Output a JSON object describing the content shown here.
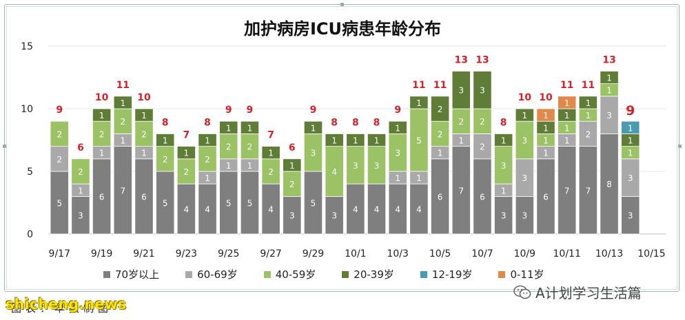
{
  "chart_data": {
    "type": "bar",
    "stacked": true,
    "title": "加护病房ICU病患年龄分布",
    "xlabel": "",
    "ylabel": "",
    "ylim": [
      0,
      15
    ],
    "yticks": [
      0,
      5,
      10,
      15
    ],
    "grid": true,
    "legend_position": "bottom",
    "categories": [
      "9/17",
      "9/18",
      "9/19",
      "9/20",
      "9/21",
      "9/22",
      "9/23",
      "9/24",
      "9/25",
      "9/26",
      "9/27",
      "9/28",
      "9/29",
      "9/30",
      "10/1",
      "10/2",
      "10/3",
      "10/4",
      "10/5",
      "10/6",
      "10/7",
      "10/8",
      "10/9",
      "10/10",
      "10/11",
      "10/12",
      "10/13",
      "10/14"
    ],
    "x_tick_labels": [
      "9/17",
      "9/19",
      "9/21",
      "9/23",
      "9/25",
      "9/27",
      "9/29",
      "10/1",
      "10/3",
      "10/5",
      "10/7",
      "10/9",
      "10/11",
      "10/13",
      "10/15"
    ],
    "series": [
      {
        "name": "70岁以上",
        "color": "#7f7f7f",
        "label_color": "#ffffff",
        "values": [
          5,
          3,
          6,
          7,
          6,
          5,
          4,
          4,
          5,
          5,
          4,
          3,
          5,
          3,
          4,
          4,
          4,
          4,
          6,
          7,
          6,
          3,
          3,
          6,
          7,
          7,
          8,
          3
        ]
      },
      {
        "name": "60-69岁",
        "color": "#a9a9a9",
        "label_color": "#ffffff",
        "values": [
          2,
          1,
          1,
          1,
          1,
          0,
          0,
          1,
          1,
          1,
          0,
          0,
          0,
          0,
          0,
          0,
          1,
          1,
          1,
          1,
          2,
          1,
          3,
          1,
          1,
          2,
          3,
          3
        ]
      },
      {
        "name": "40-59岁",
        "color": "#9bc264",
        "label_color": "#ffffff",
        "values": [
          2,
          2,
          2,
          2,
          2,
          2,
          2,
          2,
          2,
          2,
          2,
          2,
          3,
          4,
          3,
          3,
          3,
          5,
          2,
          2,
          2,
          3,
          3,
          1,
          1,
          1,
          1,
          1
        ]
      },
      {
        "name": "20-39岁",
        "color": "#5f7d36",
        "label_color": "#ffffff",
        "values": [
          0,
          0,
          1,
          1,
          1,
          1,
          1,
          1,
          1,
          1,
          1,
          1,
          1,
          1,
          1,
          1,
          1,
          1,
          2,
          3,
          3,
          1,
          1,
          1,
          1,
          1,
          1,
          1
        ]
      },
      {
        "name": "12-19岁",
        "color": "#4a9bb0",
        "label_color": "#ffffff",
        "values": [
          0,
          0,
          0,
          0,
          0,
          0,
          0,
          0,
          0,
          0,
          0,
          0,
          0,
          0,
          0,
          0,
          0,
          0,
          0,
          0,
          0,
          0,
          0,
          0,
          0,
          0,
          0,
          1
        ]
      },
      {
        "name": "0-11岁",
        "color": "#e0894a",
        "label_color": "#ffffff",
        "values": [
          0,
          0,
          0,
          0,
          0,
          0,
          0,
          0,
          0,
          0,
          0,
          0,
          0,
          0,
          0,
          0,
          0,
          0,
          0,
          0,
          0,
          0,
          0,
          1,
          1,
          0,
          0,
          0
        ]
      }
    ],
    "segment_labels_shown_for_zero": {
      "10/1": {
        "60-69岁": false
      },
      "9/30": {
        "60-69岁": "0"
      }
    },
    "totals": [
      9,
      6,
      10,
      11,
      10,
      8,
      7,
      8,
      9,
      9,
      7,
      6,
      9,
      8,
      8,
      8,
      9,
      11,
      11,
      13,
      13,
      8,
      10,
      10,
      11,
      11,
      13,
      9
    ],
    "totals_color": "#d6202a"
  },
  "source_note": "图表：早报制图",
  "watermark_left": "shicheng.news",
  "wechat_tag": "A计划学习生活篇"
}
